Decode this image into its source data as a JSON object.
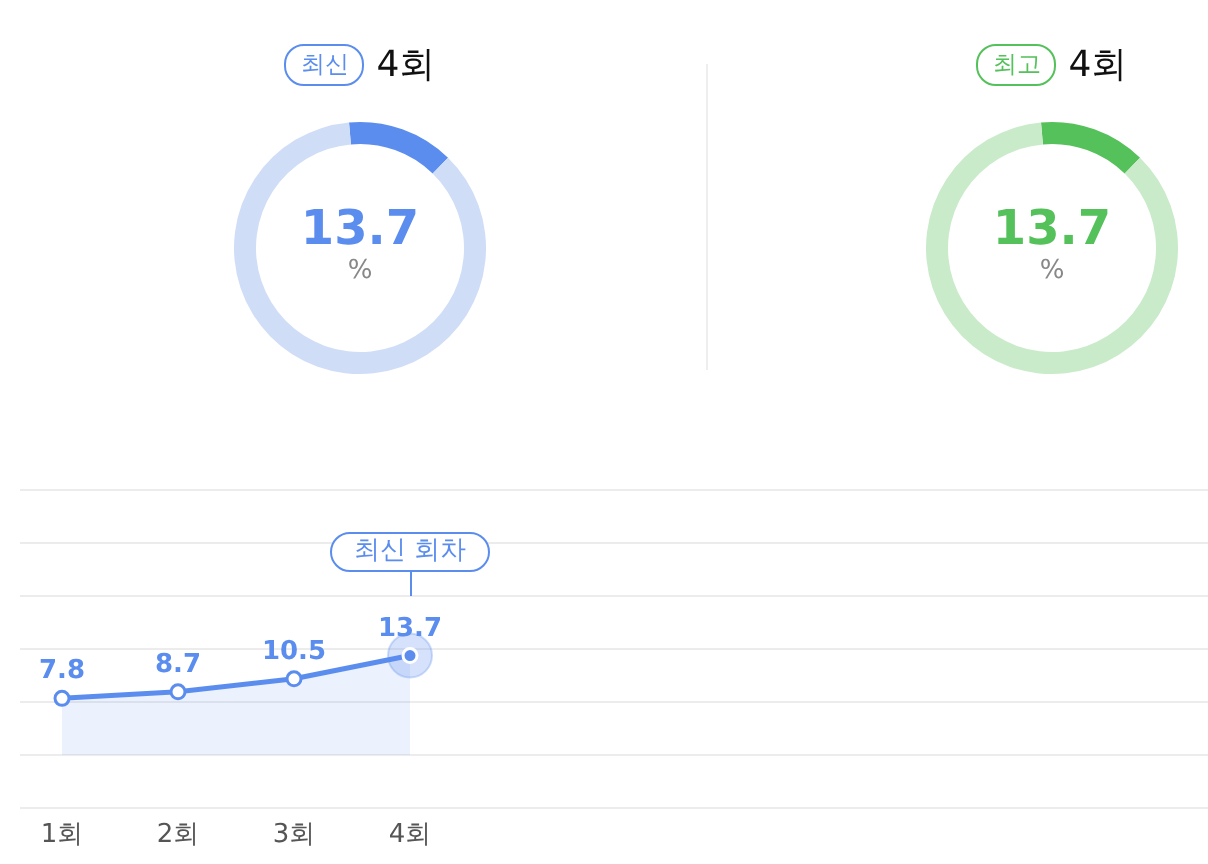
{
  "chart_data": [
    {
      "type": "donut",
      "title": "4회",
      "annotations": [
        "최신",
        "%"
      ],
      "categories": [
        null,
        null
      ],
      "values": [
        13.7,
        86.3
      ],
      "colors": [
        "#5b8def",
        "#d0ddf7"
      ],
      "value_labels": [
        "13.7",
        null
      ]
    },
    {
      "type": "donut",
      "title": "4회",
      "annotations": [
        "최고",
        "%"
      ],
      "categories": [
        null,
        null
      ],
      "values": [
        13.7,
        86.3
      ],
      "colors": [
        "#54c15a",
        "#c9ebca"
      ],
      "value_labels": [
        "13.7",
        null
      ]
    },
    {
      "type": "area",
      "categories": [
        "1회",
        "2회",
        "3회",
        "4회"
      ],
      "series": [
        {
          "color": "#5b8def",
          "values": [
            7.8,
            8.7,
            10.5,
            13.7
          ]
        }
      ],
      "ylim": [
        -7.3,
        36.5
      ],
      "yticks": [
        {
          "value": -7.3,
          "label": null
        },
        {
          "value": 0,
          "label": null
        },
        {
          "value": 7.3,
          "label": null
        },
        {
          "value": 14.6,
          "label": null
        },
        {
          "value": 21.9,
          "label": null
        },
        {
          "value": 29.2,
          "label": null
        },
        {
          "value": 36.5,
          "label": null
        }
      ],
      "grid": "y",
      "tick_labels": "x",
      "marker": "circle",
      "data_labels": true,
      "annotations": [
        "최신 회차"
      ]
    }
  ]
}
